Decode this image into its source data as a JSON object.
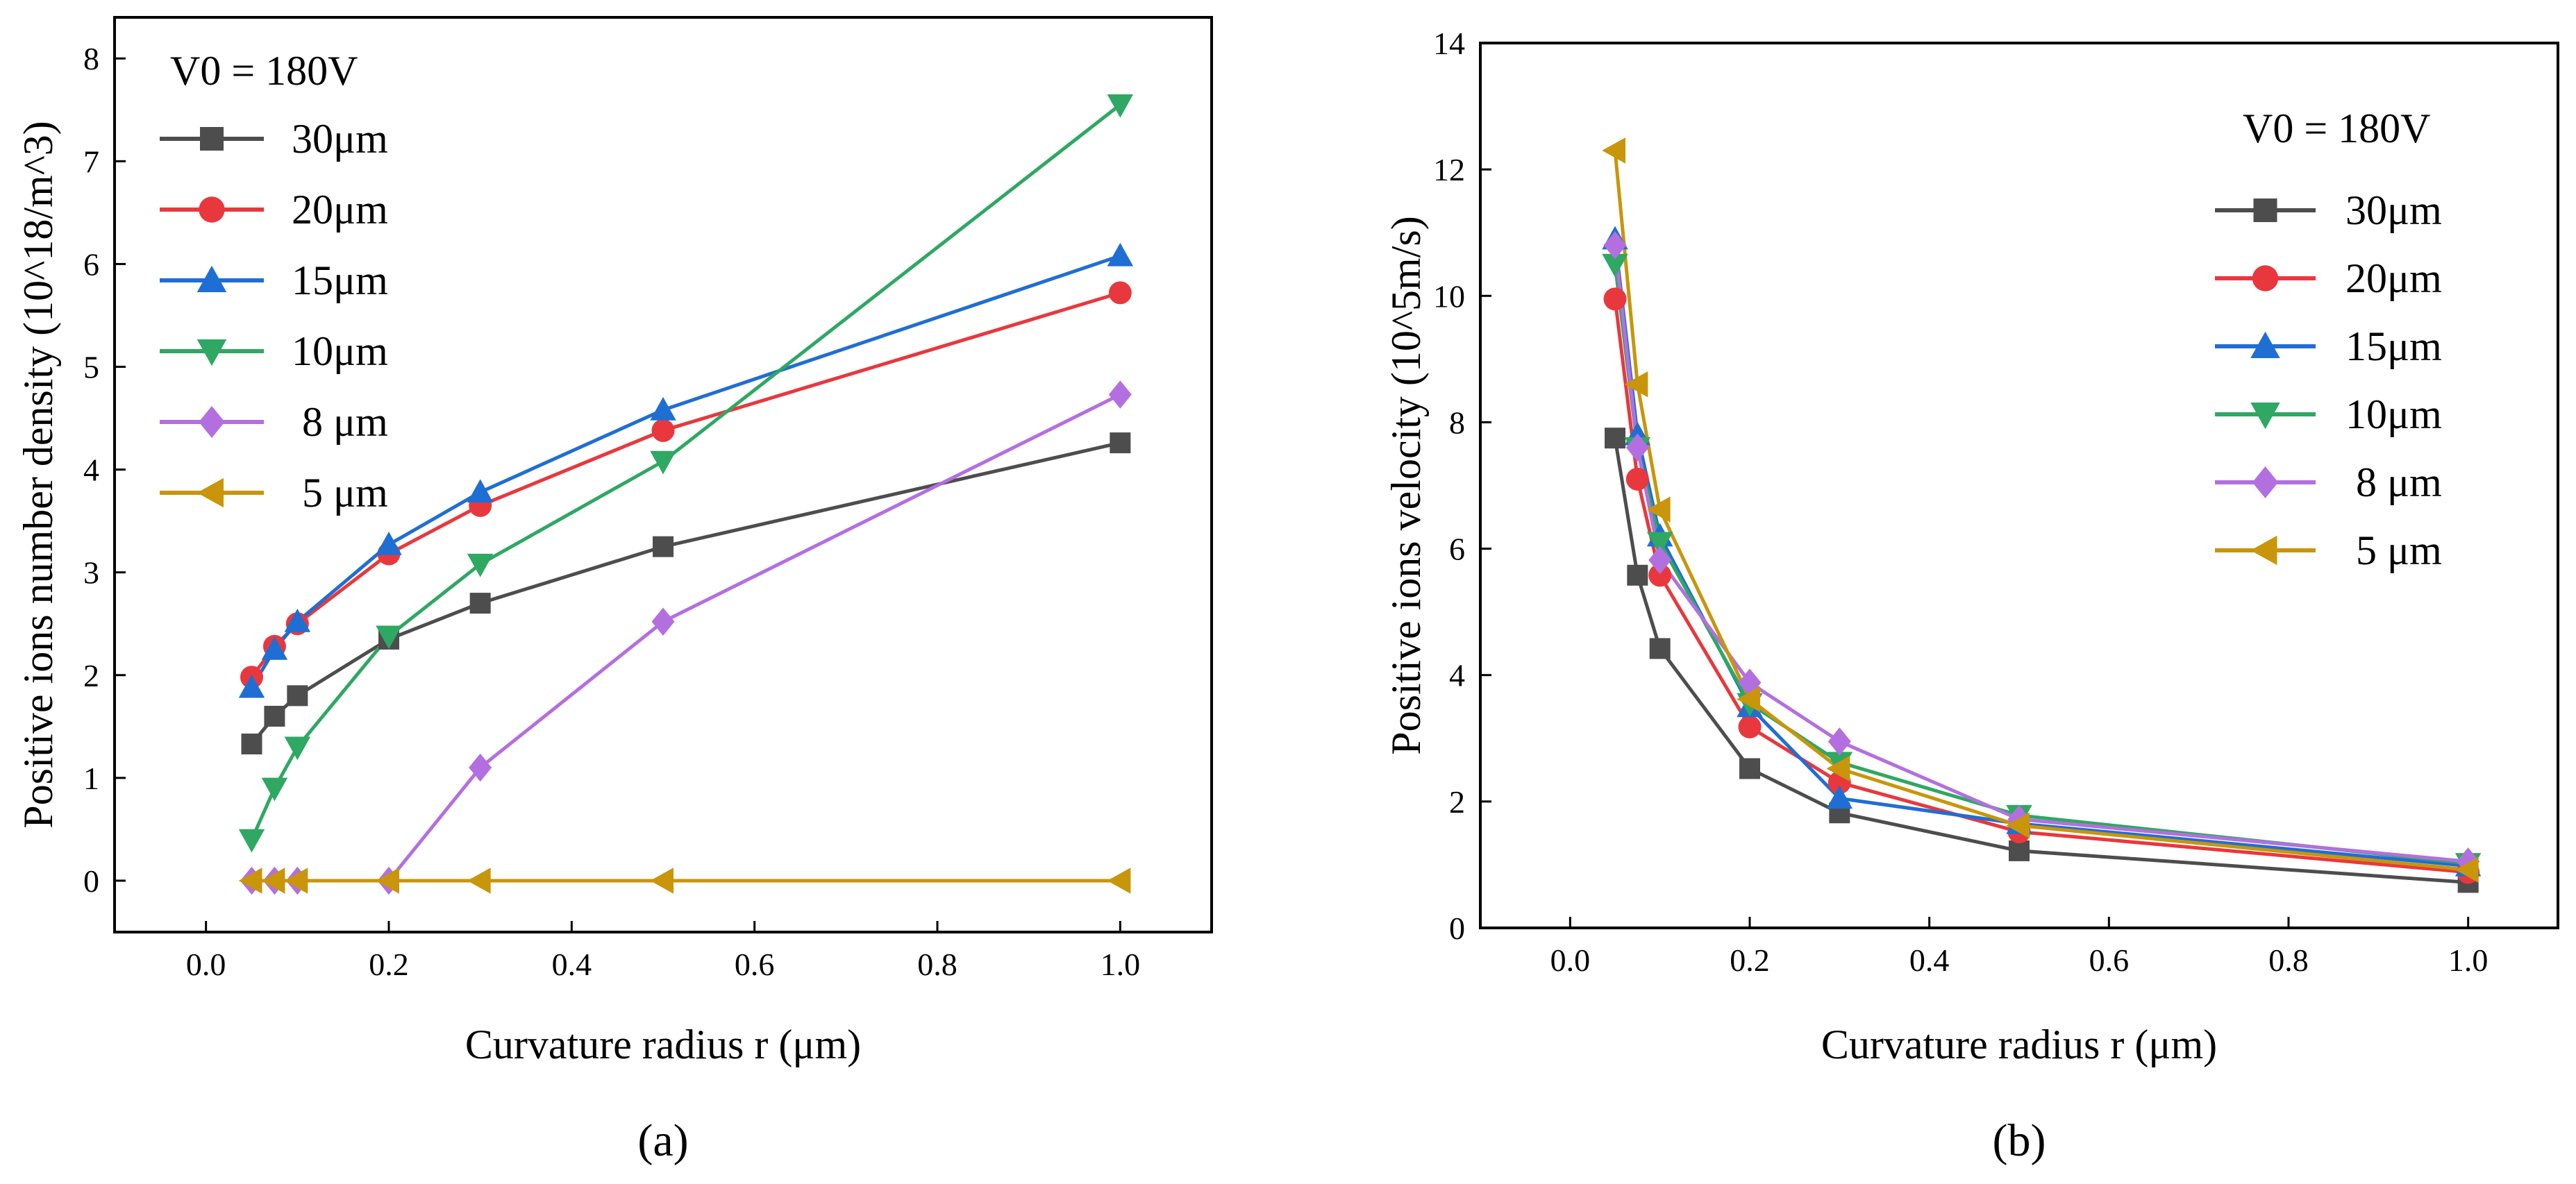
{
  "chart_data": [
    {
      "type": "line",
      "panel_label": "(a)",
      "title": "",
      "xlabel": "Curvature radius r (μm)",
      "ylabel": "Positive ions number density (10^18/m^3)",
      "xlim": [
        -0.1,
        1.1
      ],
      "ylim": [
        -0.5,
        8.4
      ],
      "x_ticks": [
        0.0,
        0.2,
        0.4,
        0.6,
        0.8,
        1.0
      ],
      "x_tick_labels": [
        "0.0",
        "0.2",
        "0.4",
        "0.6",
        "0.8",
        "1.0"
      ],
      "y_ticks": [
        0,
        1,
        2,
        3,
        4,
        5,
        6,
        7,
        8
      ],
      "y_tick_labels": [
        "0",
        "1",
        "2",
        "3",
        "4",
        "5",
        "6",
        "7",
        "8"
      ],
      "grid": false,
      "legend_title": "V0  =  180V",
      "legend_position": "top-left",
      "x": [
        0.05,
        0.075,
        0.1,
        0.2,
        0.3,
        0.5,
        1.0
      ],
      "series": [
        {
          "name": "30μm",
          "color": "#4d4d4d",
          "marker": "square",
          "values": [
            1.33,
            1.6,
            1.8,
            2.35,
            2.7,
            3.25,
            4.26
          ]
        },
        {
          "name": "20μm",
          "color": "#e8383d",
          "marker": "circle",
          "values": [
            1.98,
            2.28,
            2.5,
            3.18,
            3.65,
            4.38,
            5.72
          ]
        },
        {
          "name": "15μm",
          "color": "#1f6ed4",
          "marker": "triangle-up",
          "values": [
            1.88,
            2.25,
            2.52,
            3.27,
            3.78,
            4.58,
            6.08
          ]
        },
        {
          "name": "10μm",
          "color": "#2ea862",
          "marker": "triangle-down",
          "values": [
            0.4,
            0.9,
            1.3,
            2.38,
            3.08,
            4.08,
            7.55
          ]
        },
        {
          "name": " 8 μm",
          "color": "#b36fe0",
          "marker": "diamond",
          "values": [
            0,
            0,
            0,
            0,
            1.1,
            2.52,
            4.73
          ]
        },
        {
          "name": " 5 μm",
          "color": "#c9950a",
          "marker": "triangle-left",
          "values": [
            0,
            0,
            0,
            0,
            0,
            0,
            0
          ]
        }
      ]
    },
    {
      "type": "line",
      "panel_label": "(b)",
      "title": "",
      "xlabel": "Curvature radius r (μm)",
      "ylabel": "Positive ions velocity (10^5m/s)",
      "xlim": [
        -0.1,
        1.1
      ],
      "ylim": [
        0,
        14
      ],
      "x_ticks": [
        0.0,
        0.2,
        0.4,
        0.6,
        0.8,
        1.0
      ],
      "x_tick_labels": [
        "0.0",
        "0.2",
        "0.4",
        "0.6",
        "0.8",
        "1.0"
      ],
      "y_ticks": [
        0,
        2,
        4,
        6,
        8,
        10,
        12,
        14
      ],
      "y_tick_labels": [
        "0",
        "2",
        "4",
        "6",
        "8",
        "10",
        "12",
        "14"
      ],
      "grid": false,
      "legend_title": "V0  =  180V",
      "legend_position": "top-right",
      "x": [
        0.05,
        0.075,
        0.1,
        0.2,
        0.3,
        0.5,
        1.0
      ],
      "series": [
        {
          "name": "30μm",
          "color": "#4d4d4d",
          "marker": "square",
          "values": [
            7.75,
            5.58,
            4.42,
            2.52,
            1.82,
            1.22,
            0.72
          ]
        },
        {
          "name": "20μm",
          "color": "#e8383d",
          "marker": "circle",
          "values": [
            9.95,
            7.1,
            5.58,
            3.18,
            2.3,
            1.52,
            0.88
          ]
        },
        {
          "name": "15μm",
          "color": "#1f6ed4",
          "marker": "triangle-up",
          "values": [
            10.9,
            7.8,
            6.2,
            3.5,
            2.05,
            1.65,
            0.98
          ]
        },
        {
          "name": "10μm",
          "color": "#2ea862",
          "marker": "triangle-down",
          "values": [
            10.5,
            7.6,
            6.1,
            3.55,
            2.62,
            1.78,
            1.02
          ]
        },
        {
          "name": " 8 μm",
          "color": "#b36fe0",
          "marker": "diamond",
          "values": [
            10.8,
            7.6,
            5.82,
            3.88,
            2.95,
            1.72,
            1.05
          ]
        },
        {
          "name": " 5 μm",
          "color": "#c9950a",
          "marker": "triangle-left",
          "values": [
            12.3,
            8.6,
            6.62,
            3.62,
            2.52,
            1.62,
            0.92
          ]
        }
      ]
    }
  ]
}
